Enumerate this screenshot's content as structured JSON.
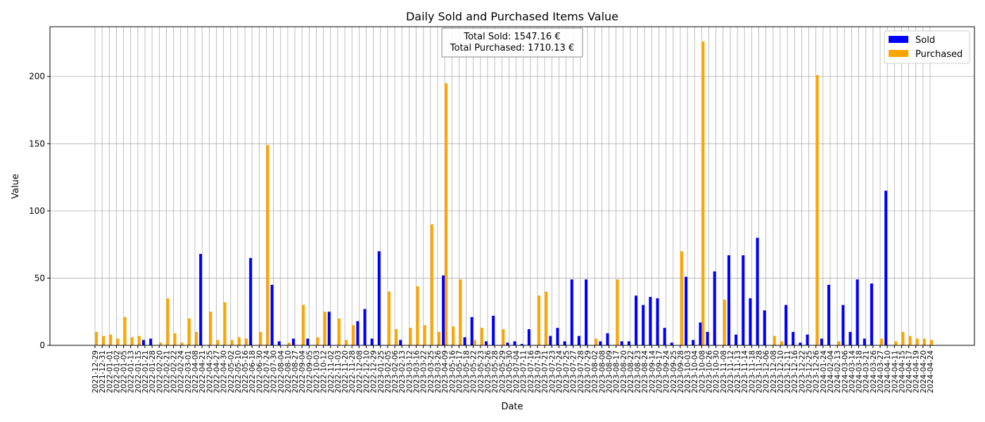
{
  "chart_data": {
    "type": "bar",
    "title": "Daily Sold and Purchased Items Value",
    "x_label": "Date",
    "y_label": "Value",
    "annotation": [
      "Total Sold: 1547.16 €",
      "Total Purchased: 1710.13 €"
    ],
    "categories": [
      "2021-12-29",
      "2021-12-31",
      "2022-01-01",
      "2022-01-02",
      "2022-01-05",
      "2022-01-13",
      "2022-01-15",
      "2022-01-21",
      "2022-01-28",
      "2022-02-20",
      "2022-02-21",
      "2022-02-22",
      "2022-02-24",
      "2022-03-01",
      "2022-04-08",
      "2022-04-21",
      "2022-04-25",
      "2022-04-27",
      "2022-04-30",
      "2022-05-02",
      "2022-05-10",
      "2022-05-16",
      "2022-06-18",
      "2022-06-30",
      "2022-07-24",
      "2022-07-30",
      "2022-08-04",
      "2022-08-10",
      "2022-08-27",
      "2022-09-04",
      "2022-09-05",
      "2022-10-03",
      "2022-10-12",
      "2022-11-02",
      "2022-11-03",
      "2022-11-20",
      "2022-11-28",
      "2022-12-08",
      "2022-12-10",
      "2022-12-29",
      "2023-01-25",
      "2023-02-05",
      "2023-02-06",
      "2023-02-13",
      "2023-03-12",
      "2023-03-16",
      "2023-03-22",
      "2023-03-25",
      "2023-03-26",
      "2023-04-09",
      "2023-05-16",
      "2023-05-17",
      "2023-05-18",
      "2023-05-22",
      "2023-05-23",
      "2023-05-26",
      "2023-05-28",
      "2023-05-29",
      "2023-05-30",
      "2023-07-04",
      "2023-07-11",
      "2023-07-16",
      "2023-07-19",
      "2023-07-21",
      "2023-07-23",
      "2023-07-24",
      "2023-07-25",
      "2023-07-27",
      "2023-07-28",
      "2023-07-29",
      "2023-08-02",
      "2023-08-08",
      "2023-08-09",
      "2023-08-17",
      "2023-08-20",
      "2023-08-22",
      "2023-08-23",
      "2023-08-24",
      "2023-09-14",
      "2023-09-17",
      "2023-09-24",
      "2023-09-25",
      "2023-09-28",
      "2023-10-03",
      "2023-10-04",
      "2023-10-08",
      "2023-10-26",
      "2023-10-30",
      "2023-11-08",
      "2023-11-12",
      "2023-11-13",
      "2023-11-14",
      "2023-11-18",
      "2023-11-28",
      "2023-12-06",
      "2023-12-08",
      "2023-12-10",
      "2023-12-11",
      "2023-12-16",
      "2023-12-22",
      "2023-12-25",
      "2023-12-26",
      "2024-01-24",
      "2024-02-04",
      "2024-02-13",
      "2024-03-06",
      "2024-03-14",
      "2024-03-18",
      "2024-03-21",
      "2024-03-26",
      "2024-03-27",
      "2024-04-10",
      "2024-04-11",
      "2024-04-15",
      "2024-04-17",
      "2024-04-19",
      "2024-04-20",
      "2024-04-24"
    ],
    "series": [
      {
        "name": "Sold",
        "color": "#0000ff",
        "values": [
          0,
          0,
          0,
          0,
          0,
          0,
          0,
          4,
          5,
          0,
          0,
          0,
          0,
          0,
          0,
          68,
          0,
          0,
          0,
          0,
          0,
          0,
          65,
          0,
          0,
          45,
          3,
          0,
          5,
          0,
          5,
          0,
          0,
          25,
          0,
          0,
          0,
          18,
          27,
          5,
          70,
          0,
          0,
          4,
          0,
          0,
          0,
          0,
          0,
          52,
          0,
          0,
          6,
          21,
          0,
          3,
          22,
          0,
          2,
          3,
          1,
          12,
          0,
          0,
          7,
          13,
          3,
          49,
          7,
          49,
          0,
          3,
          9,
          0,
          3,
          3,
          37,
          30,
          36,
          35,
          13,
          2,
          0,
          51,
          4,
          17,
          10,
          55,
          0,
          67,
          8,
          67,
          35,
          80,
          26,
          0,
          0,
          30,
          10,
          2,
          8,
          0,
          5,
          45,
          0,
          30,
          10,
          49,
          5,
          46,
          0,
          115,
          0,
          0,
          0,
          0,
          0,
          0
        ]
      },
      {
        "name": "Purchased",
        "color": "#ffa500",
        "values": [
          10,
          7,
          8,
          5,
          21,
          6,
          7,
          0,
          0,
          2,
          35,
          9,
          2,
          20,
          10,
          0,
          25,
          4,
          32,
          4,
          6,
          5,
          0,
          10,
          149,
          0,
          0,
          2,
          0,
          30,
          0,
          6,
          25,
          0,
          20,
          4,
          15,
          0,
          0,
          0,
          0,
          40,
          12,
          0,
          13,
          44,
          15,
          90,
          10,
          195,
          14,
          49,
          0,
          4,
          13,
          0,
          0,
          12,
          0,
          0,
          0,
          0,
          37,
          40,
          0,
          0,
          0,
          0,
          0,
          0,
          5,
          0,
          0,
          49,
          0,
          0,
          0,
          0,
          0,
          0,
          0,
          0,
          70,
          0,
          0,
          226,
          0,
          0,
          34,
          0,
          0,
          0,
          0,
          0,
          0,
          7,
          3,
          0,
          0,
          0,
          0,
          201,
          0,
          0,
          3,
          0,
          0,
          0,
          0,
          0,
          5,
          0,
          3,
          10,
          7,
          5,
          5,
          4
        ]
      }
    ],
    "ylim": [
      0,
      237
    ],
    "yticks": [
      0,
      50,
      100,
      150,
      200
    ],
    "grid": true,
    "legend": "upper right"
  }
}
